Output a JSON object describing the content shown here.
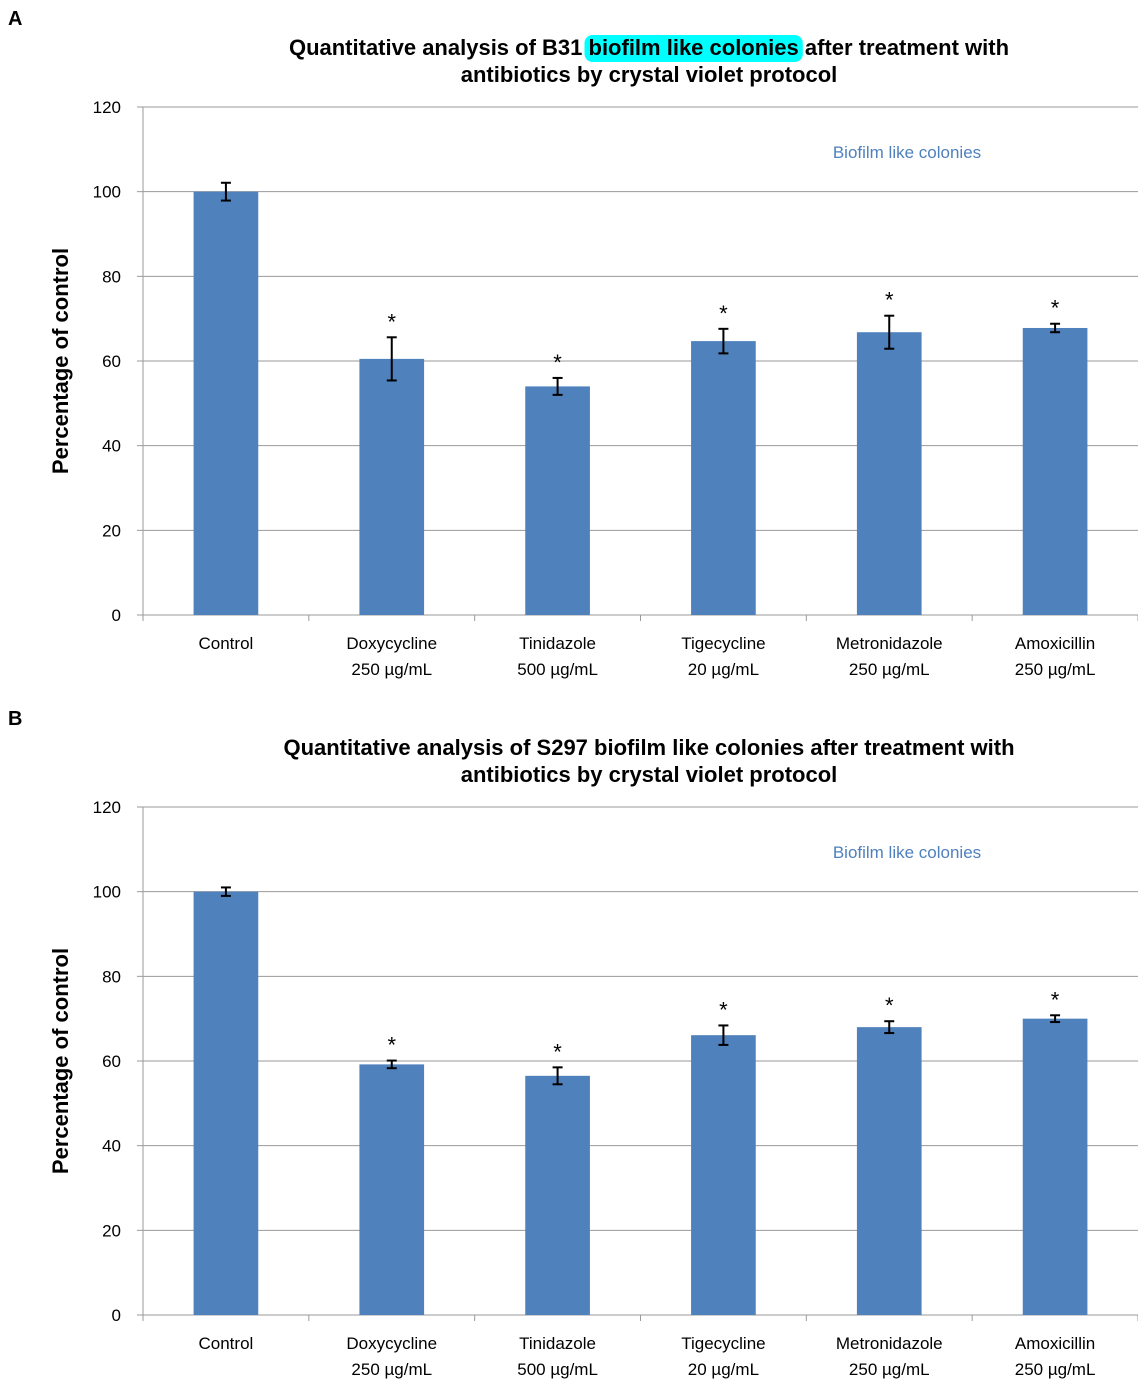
{
  "chart_data": [
    {
      "panel": "A",
      "type": "bar",
      "title_lines": [
        {
          "parts": [
            {
              "text": "Quantitative analysis of B31 ",
              "highlight": false
            },
            {
              "text": "biofilm like colonies",
              "highlight": true
            },
            {
              "text": " after treatment with",
              "highlight": false
            }
          ]
        },
        {
          "parts": [
            {
              "text": "antibiotics by crystal violet protocol",
              "highlight": false
            }
          ]
        }
      ],
      "ylabel": "Percentage of control",
      "legend": "Biofilm like colonies",
      "ylim": [
        0,
        120
      ],
      "yticks": [
        0,
        20,
        40,
        60,
        80,
        100,
        120
      ],
      "grid": true,
      "categories": [
        {
          "line1": "Control",
          "line2": ""
        },
        {
          "line1": "Doxycycline",
          "line2": "250 µg/mL"
        },
        {
          "line1": "Tinidazole",
          "line2": "500 µg/mL"
        },
        {
          "line1": "Tigecycline",
          "line2": "20 µg/mL"
        },
        {
          "line1": "Metronidazole",
          "line2": "250 µg/mL"
        },
        {
          "line1": "Amoxicillin",
          "line2": "250 µg/mL"
        }
      ],
      "values": [
        100,
        60.5,
        54,
        64.7,
        66.8,
        67.8
      ],
      "errors": [
        2.1,
        5.1,
        2.0,
        2.9,
        3.9,
        1.0
      ],
      "significance": [
        "",
        "*",
        "*",
        "*",
        "*",
        "*"
      ]
    },
    {
      "panel": "B",
      "type": "bar",
      "title_lines": [
        {
          "parts": [
            {
              "text": "Quantitative analysis of S297 biofilm like colonies after treatment with",
              "highlight": false
            }
          ]
        },
        {
          "parts": [
            {
              "text": "antibiotics by crystal violet protocol",
              "highlight": false
            }
          ]
        }
      ],
      "ylabel": "Percentage of control",
      "legend": "Biofilm like colonies",
      "ylim": [
        0,
        120
      ],
      "yticks": [
        0,
        20,
        40,
        60,
        80,
        100,
        120
      ],
      "grid": true,
      "categories": [
        {
          "line1": "Control",
          "line2": ""
        },
        {
          "line1": "Doxycycline",
          "line2": "250 µg/mL"
        },
        {
          "line1": "Tinidazole",
          "line2": "500 µg/mL"
        },
        {
          "line1": "Tigecycline",
          "line2": "20 µg/mL"
        },
        {
          "line1": "Metronidazole",
          "line2": "250 µg/mL"
        },
        {
          "line1": "Amoxicillin",
          "line2": "250 µg/mL"
        }
      ],
      "values": [
        100,
        59.2,
        56.5,
        66.1,
        68,
        70
      ],
      "errors": [
        1.0,
        0.9,
        2.0,
        2.3,
        1.4,
        0.8
      ],
      "significance": [
        "",
        "*",
        "*",
        "*",
        "*",
        "*"
      ]
    }
  ],
  "colors": {
    "bar": "#4f81bd",
    "legend_text": "#4f81bd",
    "grid": "#9a9a9a",
    "highlight": "#00ffff"
  }
}
